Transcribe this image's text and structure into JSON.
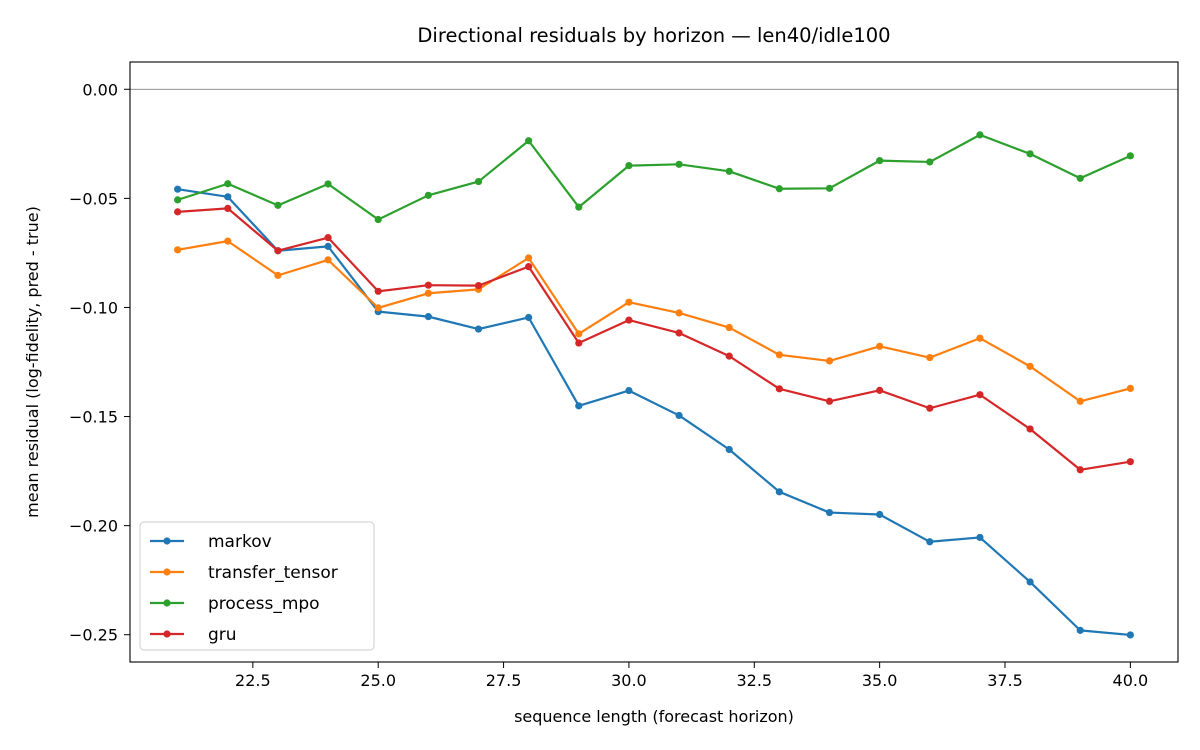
{
  "chart_data": {
    "type": "line",
    "title": "Directional residuals by horizon — len40/idle100",
    "xlabel": "sequence length (forecast horizon)",
    "ylabel": "mean residual (log-fidelity, pred - true)",
    "xlim": [
      20.05,
      40.95
    ],
    "ylim": [
      -0.2625,
      0.0125
    ],
    "x_ticks": [
      22.5,
      25.0,
      27.5,
      30.0,
      32.5,
      35.0,
      37.5,
      40.0
    ],
    "x_tick_labels": [
      "22.5",
      "25.0",
      "27.5",
      "30.0",
      "32.5",
      "35.0",
      "37.5",
      "40.0"
    ],
    "y_ticks": [
      0.0,
      -0.05,
      -0.1,
      -0.15,
      -0.2,
      -0.25
    ],
    "y_tick_labels": [
      "0.00",
      "−0.05",
      "−0.10",
      "−0.15",
      "−0.20",
      "−0.25"
    ],
    "reference_line_y": 0.0,
    "grid": false,
    "legend_position": "lower-left",
    "x": [
      21,
      22,
      23,
      24,
      25,
      26,
      27,
      28,
      29,
      30,
      31,
      32,
      33,
      34,
      35,
      36,
      37,
      38,
      39,
      40
    ],
    "series": [
      {
        "name": "markov",
        "color": "#1f77b4",
        "values": [
          -0.0458,
          -0.0493,
          -0.074,
          -0.072,
          -0.1019,
          -0.1042,
          -0.1099,
          -0.1046,
          -0.1451,
          -0.1381,
          -0.1495,
          -0.1651,
          -0.1845,
          -0.194,
          -0.1949,
          -0.2074,
          -0.2054,
          -0.2258,
          -0.248,
          -0.2501
        ]
      },
      {
        "name": "transfer_tensor",
        "color": "#ff7f0e",
        "values": [
          -0.0736,
          -0.0696,
          -0.0853,
          -0.0782,
          -0.1002,
          -0.0935,
          -0.0917,
          -0.0773,
          -0.1121,
          -0.0976,
          -0.1025,
          -0.1092,
          -0.1217,
          -0.1245,
          -0.1178,
          -0.123,
          -0.1141,
          -0.127,
          -0.143,
          -0.1371
        ]
      },
      {
        "name": "process_mpo",
        "color": "#2ca02c",
        "values": [
          -0.0507,
          -0.0433,
          -0.0532,
          -0.0434,
          -0.0597,
          -0.0486,
          -0.0423,
          -0.0236,
          -0.054,
          -0.035,
          -0.0344,
          -0.0376,
          -0.0456,
          -0.0454,
          -0.0327,
          -0.0333,
          -0.0209,
          -0.0296,
          -0.0408,
          -0.0305
        ]
      },
      {
        "name": "gru",
        "color": "#d62728",
        "values": [
          -0.0562,
          -0.0546,
          -0.074,
          -0.068,
          -0.0926,
          -0.0898,
          -0.09,
          -0.0813,
          -0.1163,
          -0.1058,
          -0.1117,
          -0.1223,
          -0.1373,
          -0.143,
          -0.138,
          -0.1462,
          -0.14,
          -0.1557,
          -0.1744,
          -0.1707
        ]
      }
    ]
  }
}
